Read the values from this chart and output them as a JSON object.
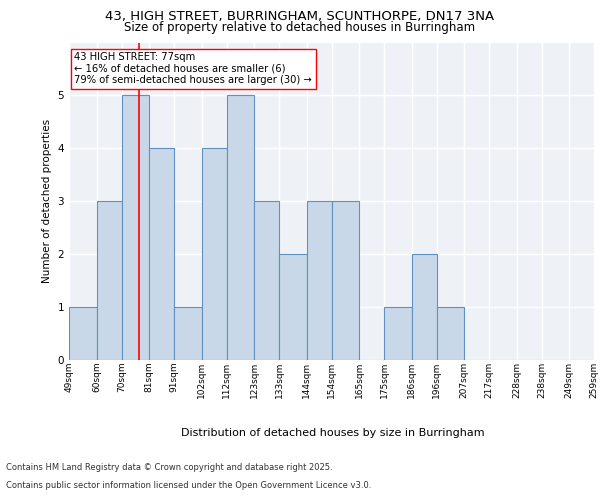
{
  "title_line1": "43, HIGH STREET, BURRINGHAM, SCUNTHORPE, DN17 3NA",
  "title_line2": "Size of property relative to detached houses in Burringham",
  "xlabel": "Distribution of detached houses by size in Burringham",
  "ylabel": "Number of detached properties",
  "bin_labels": [
    "49sqm",
    "60sqm",
    "70sqm",
    "81sqm",
    "91sqm",
    "102sqm",
    "112sqm",
    "123sqm",
    "133sqm",
    "144sqm",
    "154sqm",
    "165sqm",
    "175sqm",
    "186sqm",
    "196sqm",
    "207sqm",
    "217sqm",
    "228sqm",
    "238sqm",
    "249sqm",
    "259sqm"
  ],
  "bar_values": [
    1,
    3,
    5,
    4,
    1,
    4,
    5,
    3,
    2,
    3,
    3,
    0,
    1,
    2,
    1,
    0,
    0,
    0,
    0,
    0
  ],
  "bin_edges": [
    49,
    60,
    70,
    81,
    91,
    102,
    112,
    123,
    133,
    144,
    154,
    165,
    175,
    186,
    196,
    207,
    217,
    228,
    238,
    249,
    259
  ],
  "bar_color": "#c8d8e8",
  "bar_edge_color": "#6090c0",
  "ref_line_x": 77,
  "ref_line_color": "red",
  "annotation_text": "43 HIGH STREET: 77sqm\n← 16% of detached houses are smaller (6)\n79% of semi-detached houses are larger (30) →",
  "annotation_box_color": "white",
  "annotation_box_edge_color": "red",
  "ylim": [
    0,
    6
  ],
  "yticks": [
    0,
    1,
    2,
    3,
    4,
    5,
    6
  ],
  "bg_color": "#eef2f7",
  "footer_line1": "Contains HM Land Registry data © Crown copyright and database right 2025.",
  "footer_line2": "Contains public sector information licensed under the Open Government Licence v3.0."
}
